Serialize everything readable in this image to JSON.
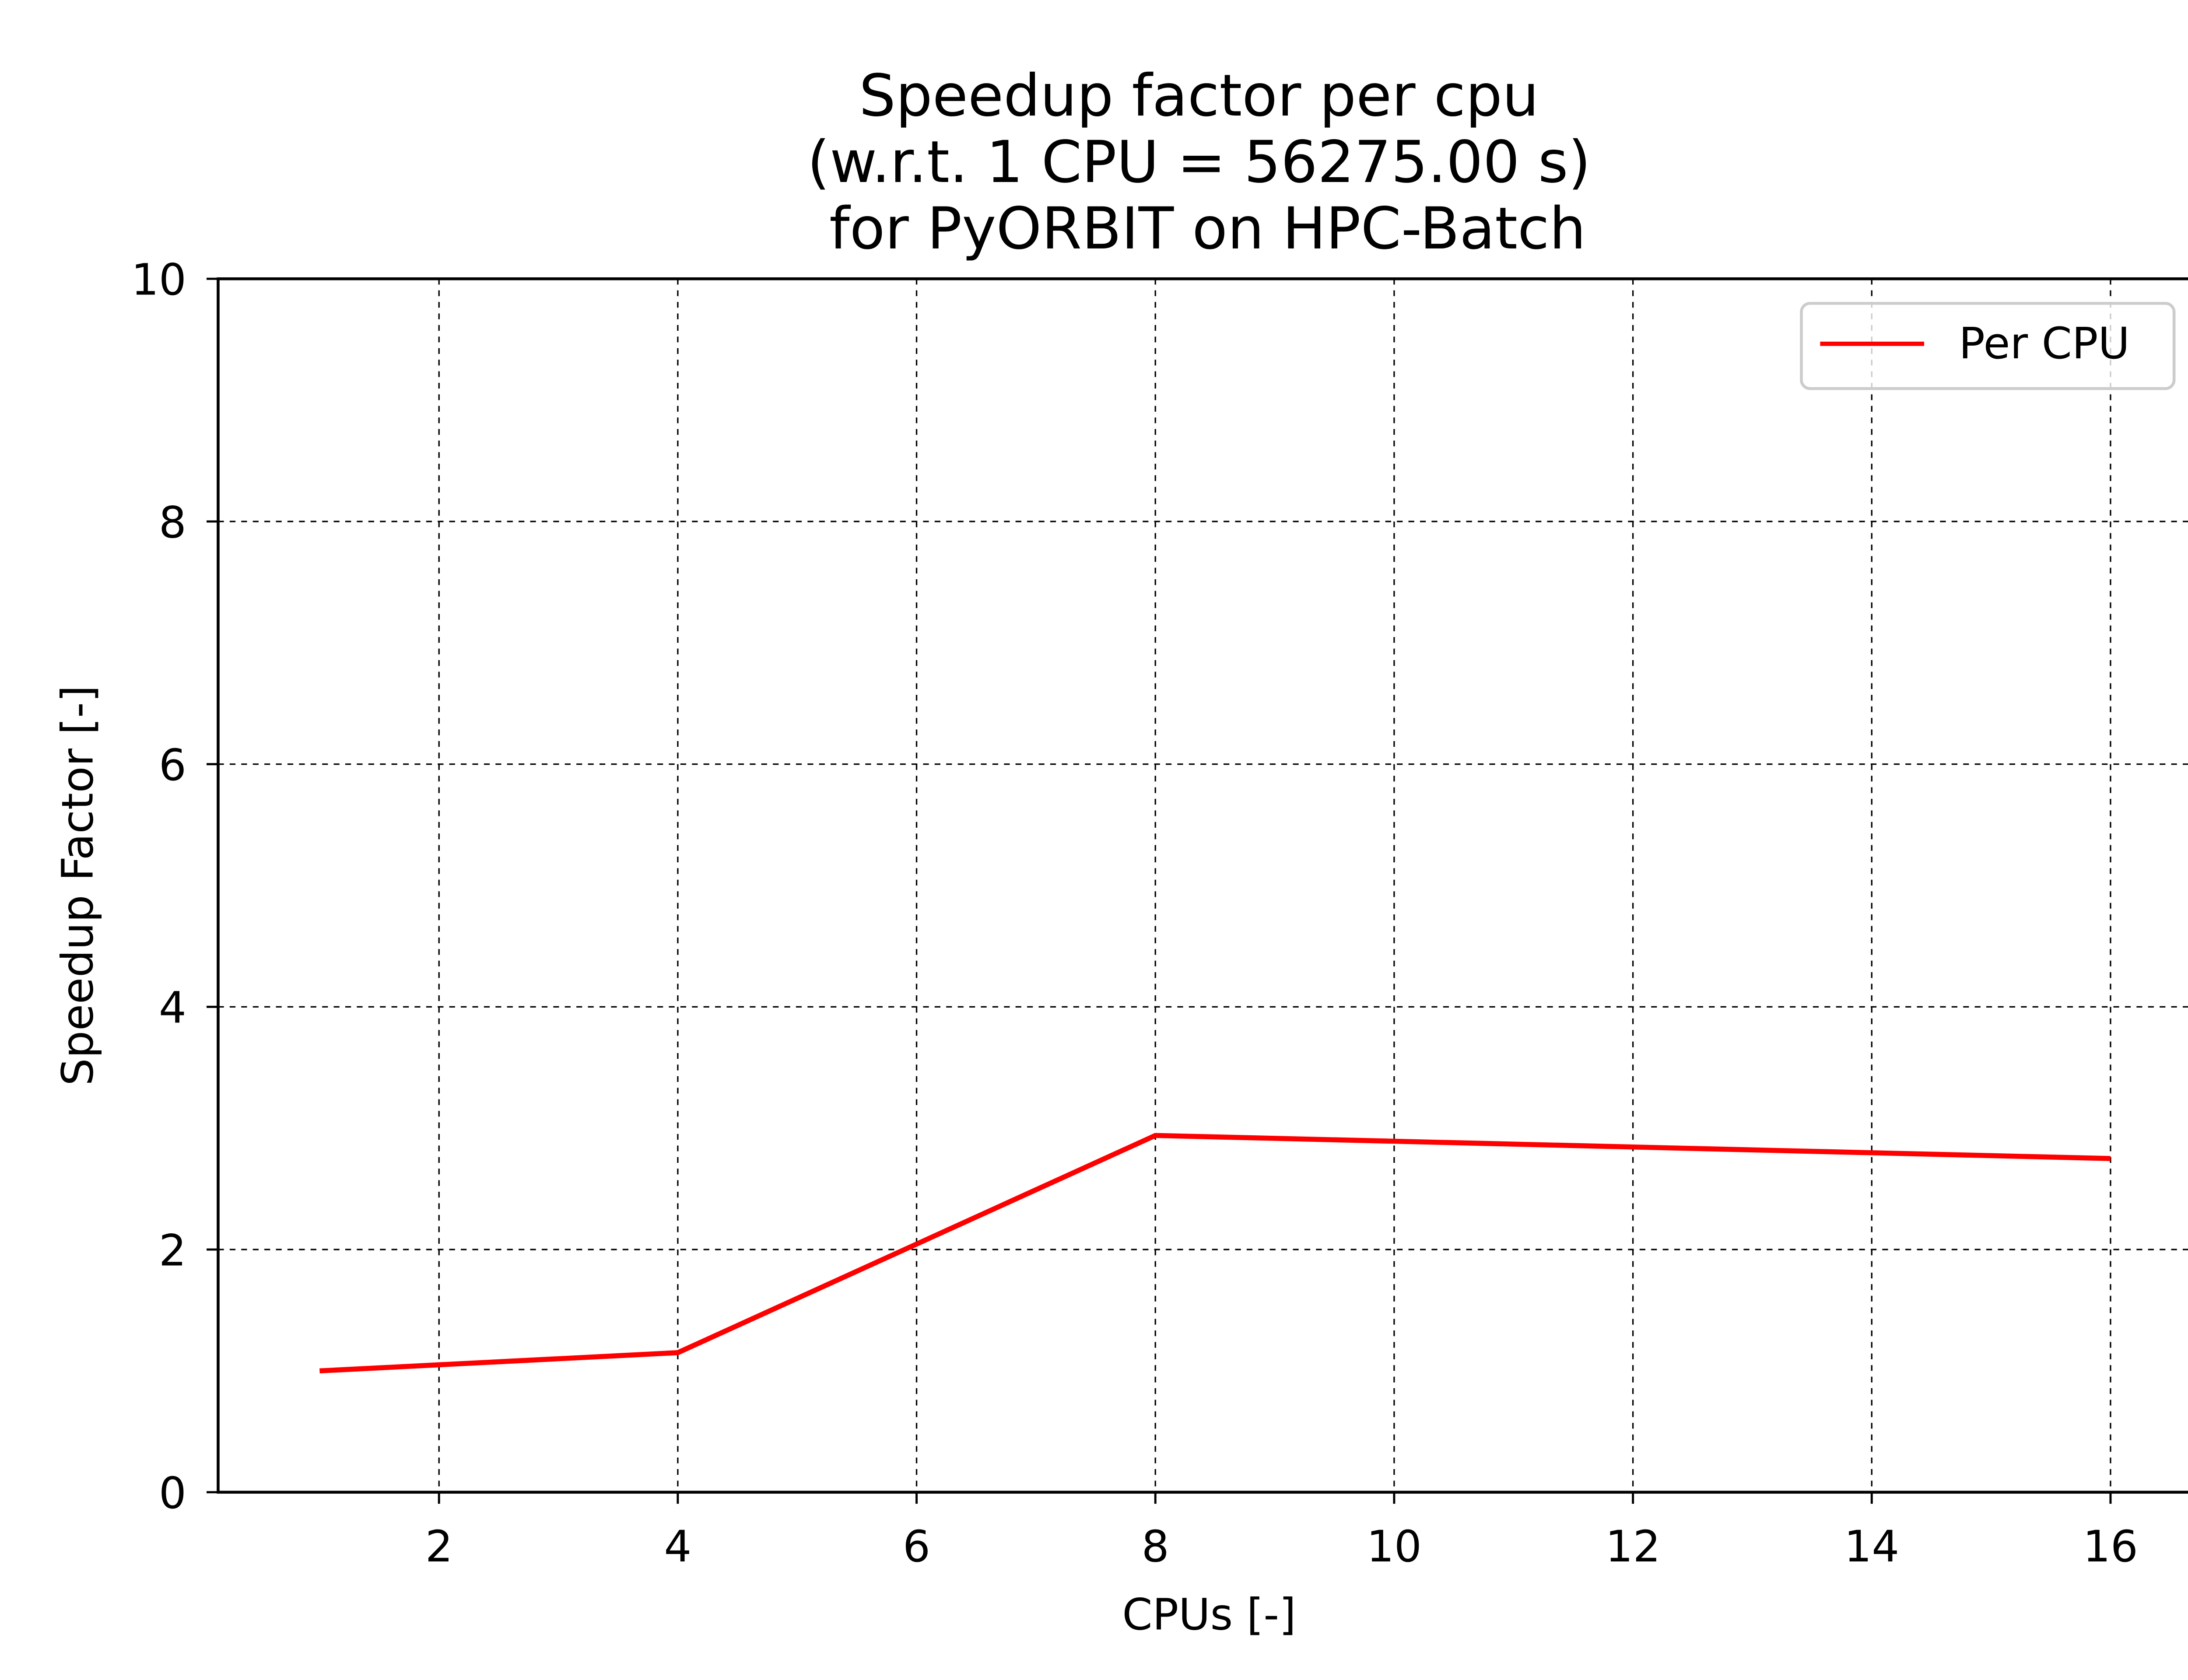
{
  "chart_data": {
    "type": "line",
    "title_lines": [
      "Speedup factor per cpu",
      "(w.r.t. 1 CPU = 56275.00 s)",
      "for PyORBIT on HPC-Batch"
    ],
    "xlabel": "CPUs [-]",
    "ylabel": "Speedup Factor [-]",
    "xlim": [
      0.15,
      16.75
    ],
    "ylim": [
      0,
      10
    ],
    "xticks": [
      2,
      4,
      6,
      8,
      10,
      12,
      14,
      16
    ],
    "yticks": [
      0,
      2,
      4,
      6,
      8,
      10
    ],
    "grid": true,
    "legend_position": "top-right",
    "series": [
      {
        "name": "Per CPU",
        "color": "#ff0000",
        "x": [
          1,
          4,
          8,
          16
        ],
        "y": [
          1.0,
          1.15,
          2.94,
          2.75
        ]
      }
    ]
  }
}
